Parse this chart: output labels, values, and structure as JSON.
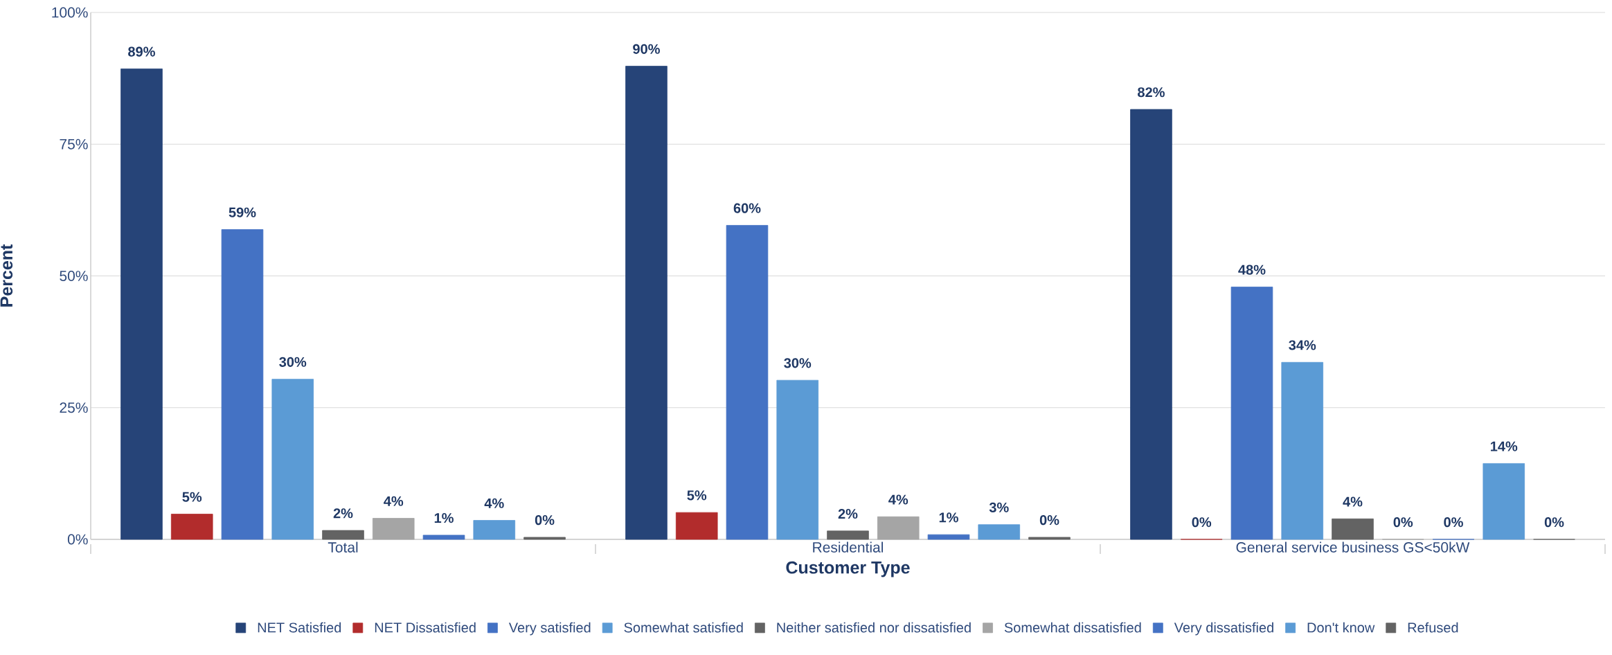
{
  "chart_data": {
    "type": "bar",
    "xlabel": "Customer Type",
    "ylabel": "Percent",
    "categories": [
      "Total",
      "Residential",
      "General service business GS<50kW"
    ],
    "series": [
      {
        "name": "NET Satisfied",
        "color": "#264478",
        "values": [
          89.3,
          89.8,
          81.6
        ],
        "value_labels": [
          "89%",
          "90%",
          "82%"
        ]
      },
      {
        "name": "NET Dissatisfied",
        "color": "#b22c2c",
        "values": [
          4.8,
          5.1,
          0
        ],
        "value_labels": [
          "5%",
          "5%",
          "0%"
        ]
      },
      {
        "name": "Very satisfied",
        "color": "#4472c4",
        "values": [
          58.8,
          59.6,
          47.9
        ],
        "value_labels": [
          "59%",
          "60%",
          "48%"
        ]
      },
      {
        "name": "Somewhat satisfied",
        "color": "#5b9bd5",
        "values": [
          30.4,
          30.2,
          33.6
        ],
        "value_labels": [
          "30%",
          "30%",
          "34%"
        ]
      },
      {
        "name": "Neither satisfied nor dissatisfied",
        "color": "#636363",
        "values": [
          1.7,
          1.6,
          3.9
        ],
        "value_labels": [
          "2%",
          "2%",
          "4%"
        ]
      },
      {
        "name": "Somewhat dissatisfied",
        "color": "#a5a5a5",
        "values": [
          4.0,
          4.3,
          0
        ],
        "value_labels": [
          "4%",
          "4%",
          "0%"
        ]
      },
      {
        "name": "Very dissatisfied",
        "color": "#4472c4",
        "values": [
          0.8,
          0.9,
          0
        ],
        "value_labels": [
          "1%",
          "1%",
          "0%"
        ]
      },
      {
        "name": "Don't know",
        "color": "#5b9bd5",
        "values": [
          3.6,
          2.8,
          14.4
        ],
        "value_labels": [
          "4%",
          "3%",
          "14%"
        ]
      },
      {
        "name": "Refused",
        "color": "#636363",
        "values": [
          0.4,
          0.4,
          0
        ],
        "value_labels": [
          "0%",
          "0%",
          "0%"
        ]
      }
    ],
    "ylim": [
      0,
      100
    ],
    "yticks": [
      {
        "value": 0,
        "label": "0%"
      },
      {
        "value": 25,
        "label": "25%"
      },
      {
        "value": 50,
        "label": "50%"
      },
      {
        "value": 75,
        "label": "75%"
      },
      {
        "value": 100,
        "label": "100%"
      }
    ],
    "grid": "y",
    "legend": "bottom"
  }
}
